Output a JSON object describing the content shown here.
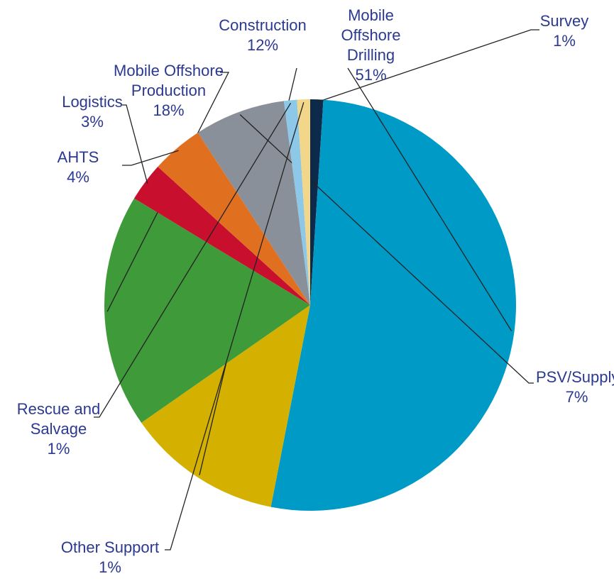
{
  "chart_data": {
    "type": "pie",
    "categories": [
      "Survey",
      "Mobile Offshore Drilling",
      "Construction",
      "Mobile Offshore Production",
      "Logistics",
      "AHTS",
      "PSV/Supply",
      "Rescue and Salvage",
      "Other Support"
    ],
    "values": [
      1,
      51,
      12,
      18,
      3,
      4,
      7,
      1,
      1
    ],
    "value_labels": [
      "1%",
      "51%",
      "12%",
      "18%",
      "3%",
      "4%",
      "7%",
      "1%",
      "1%"
    ],
    "colors": [
      "#0d2a4a",
      "#009ac7",
      "#d4b000",
      "#3f9a3a",
      "#c8102e",
      "#e07020",
      "#8a9099",
      "#8dc8e8",
      "#f2d68a"
    ]
  }
}
